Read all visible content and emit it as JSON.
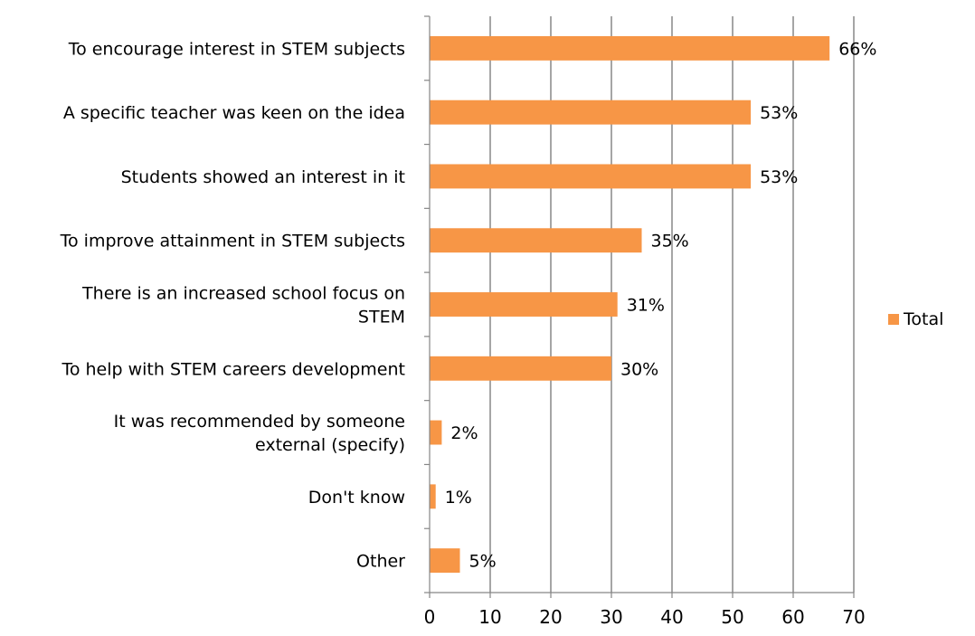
{
  "chart_data": {
    "type": "bar",
    "orientation": "horizontal",
    "categories": [
      [
        "To encourage interest in STEM subjects"
      ],
      [
        "A specific teacher was keen on the idea"
      ],
      [
        "Students showed an interest in it"
      ],
      [
        "To improve attainment in STEM subjects"
      ],
      [
        "There is an increased school focus on",
        "STEM"
      ],
      [
        "To help with STEM careers development"
      ],
      [
        "It was recommended by someone",
        "external (specify)"
      ],
      [
        "Don't know"
      ],
      [
        "Other"
      ]
    ],
    "series": [
      {
        "name": "Total",
        "values": [
          66,
          53,
          53,
          35,
          31,
          30,
          2,
          1,
          5
        ],
        "value_labels": [
          "66%",
          "53%",
          "53%",
          "35%",
          "31%",
          "30%",
          "2%",
          "1%",
          "5%"
        ],
        "color": "#F79646"
      }
    ],
    "xlim": [
      0,
      70
    ],
    "x_ticks": [
      0,
      10,
      20,
      30,
      40,
      50,
      60,
      70
    ],
    "x_tick_labels": [
      "0",
      "10",
      "20",
      "30",
      "40",
      "50",
      "60",
      "70"
    ],
    "grid": "vertical",
    "grid_color": "#7F7F7F",
    "axis_color": "#868686",
    "legend": {
      "position": "right",
      "entries": [
        "Total"
      ]
    },
    "title": "",
    "xlabel": "",
    "ylabel": ""
  }
}
